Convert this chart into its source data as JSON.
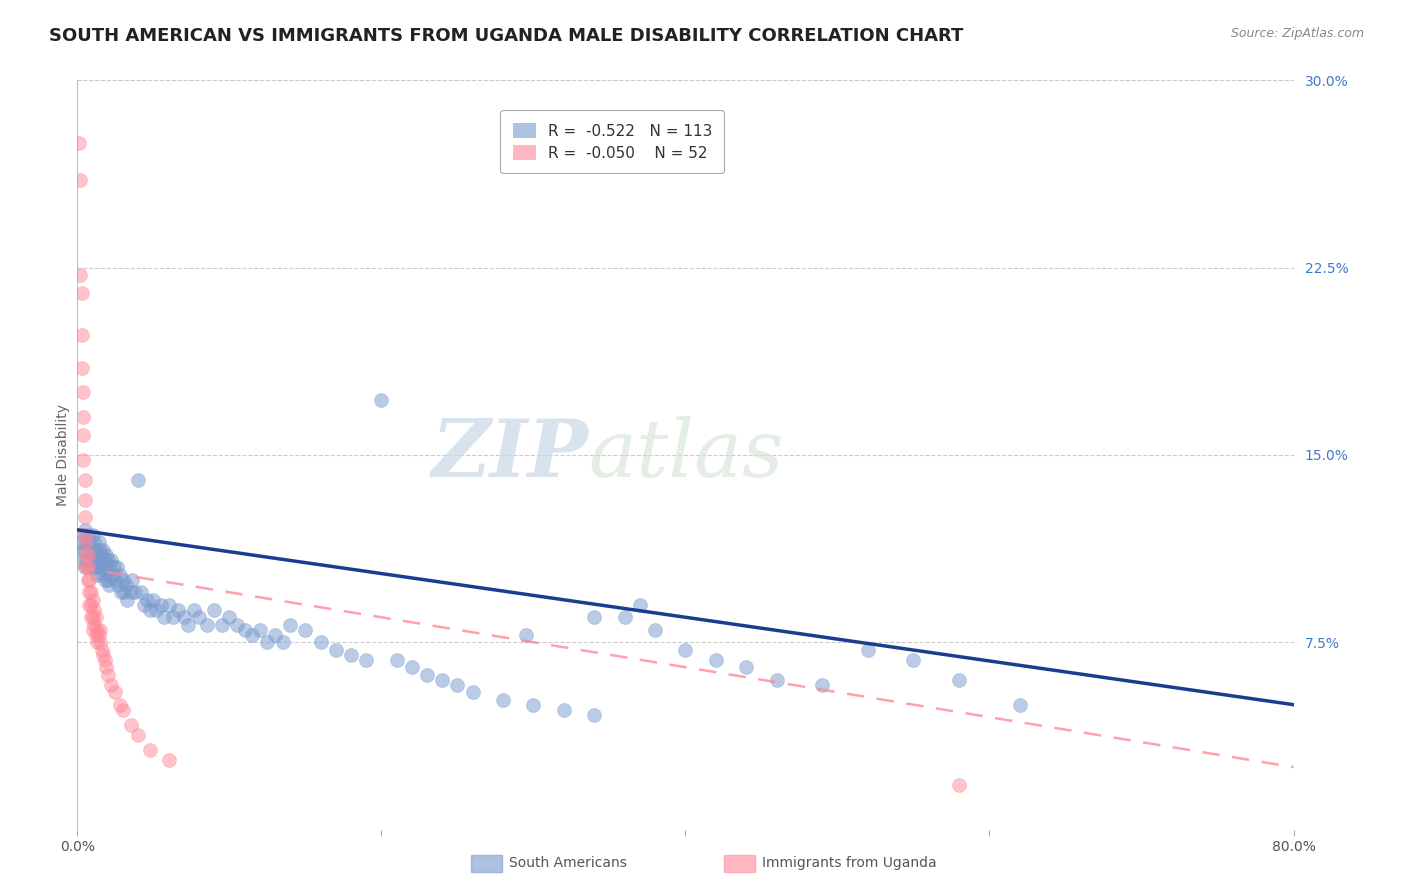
{
  "title": "SOUTH AMERICAN VS IMMIGRANTS FROM UGANDA MALE DISABILITY CORRELATION CHART",
  "source": "Source: ZipAtlas.com",
  "xlabel": "",
  "ylabel": "Male Disability",
  "xlim": [
    0.0,
    0.8
  ],
  "ylim": [
    0.0,
    0.3
  ],
  "xticks": [
    0.0,
    0.2,
    0.4,
    0.6,
    0.8
  ],
  "xticklabels": [
    "0.0%",
    "",
    "",
    "",
    "80.0%"
  ],
  "yticks_right": [
    0.075,
    0.15,
    0.225,
    0.3
  ],
  "ytick_labels_right": [
    "7.5%",
    "15.0%",
    "22.5%",
    "30.0%"
  ],
  "background_color": "#ffffff",
  "grid_color": "#cccccc",
  "blue_color": "#7799cc",
  "pink_color": "#ff8899",
  "blue_line_color": "#1a3e8f",
  "pink_line_color": "#ff99aa",
  "legend_R1": "-0.522",
  "legend_N1": "113",
  "legend_R2": "-0.050",
  "legend_N2": "52",
  "label1": "South Americans",
  "label2": "Immigrants from Uganda",
  "title_fontsize": 13,
  "axis_label_fontsize": 10,
  "tick_fontsize": 10,
  "legend_fontsize": 11,
  "right_tick_color": "#4477cc",
  "blue_scatter_x": [
    0.002,
    0.003,
    0.004,
    0.004,
    0.005,
    0.005,
    0.005,
    0.006,
    0.006,
    0.007,
    0.007,
    0.008,
    0.008,
    0.009,
    0.009,
    0.01,
    0.01,
    0.01,
    0.011,
    0.011,
    0.012,
    0.012,
    0.013,
    0.013,
    0.014,
    0.014,
    0.015,
    0.015,
    0.016,
    0.016,
    0.017,
    0.017,
    0.018,
    0.018,
    0.019,
    0.019,
    0.02,
    0.02,
    0.021,
    0.021,
    0.022,
    0.023,
    0.024,
    0.025,
    0.026,
    0.027,
    0.028,
    0.029,
    0.03,
    0.031,
    0.032,
    0.033,
    0.035,
    0.036,
    0.038,
    0.04,
    0.042,
    0.044,
    0.046,
    0.048,
    0.05,
    0.052,
    0.055,
    0.057,
    0.06,
    0.063,
    0.066,
    0.07,
    0.073,
    0.077,
    0.08,
    0.085,
    0.09,
    0.095,
    0.1,
    0.105,
    0.11,
    0.115,
    0.12,
    0.125,
    0.13,
    0.135,
    0.14,
    0.15,
    0.16,
    0.17,
    0.18,
    0.19,
    0.2,
    0.21,
    0.22,
    0.23,
    0.24,
    0.25,
    0.26,
    0.28,
    0.3,
    0.32,
    0.34,
    0.36,
    0.38,
    0.4,
    0.42,
    0.44,
    0.46,
    0.49,
    0.52,
    0.55,
    0.58,
    0.62,
    0.37,
    0.34,
    0.295
  ],
  "blue_scatter_y": [
    0.115,
    0.112,
    0.118,
    0.108,
    0.12,
    0.112,
    0.105,
    0.115,
    0.108,
    0.118,
    0.11,
    0.115,
    0.105,
    0.112,
    0.108,
    0.118,
    0.112,
    0.105,
    0.115,
    0.108,
    0.112,
    0.105,
    0.11,
    0.102,
    0.115,
    0.108,
    0.112,
    0.105,
    0.11,
    0.102,
    0.112,
    0.105,
    0.108,
    0.1,
    0.11,
    0.103,
    0.108,
    0.1,
    0.105,
    0.098,
    0.108,
    0.102,
    0.105,
    0.1,
    0.105,
    0.098,
    0.102,
    0.095,
    0.1,
    0.095,
    0.098,
    0.092,
    0.095,
    0.1,
    0.095,
    0.14,
    0.095,
    0.09,
    0.092,
    0.088,
    0.092,
    0.088,
    0.09,
    0.085,
    0.09,
    0.085,
    0.088,
    0.085,
    0.082,
    0.088,
    0.085,
    0.082,
    0.088,
    0.082,
    0.085,
    0.082,
    0.08,
    0.078,
    0.08,
    0.075,
    0.078,
    0.075,
    0.082,
    0.08,
    0.075,
    0.072,
    0.07,
    0.068,
    0.172,
    0.068,
    0.065,
    0.062,
    0.06,
    0.058,
    0.055,
    0.052,
    0.05,
    0.048,
    0.046,
    0.085,
    0.08,
    0.072,
    0.068,
    0.065,
    0.06,
    0.058,
    0.072,
    0.068,
    0.06,
    0.05,
    0.09,
    0.085,
    0.078
  ],
  "pink_scatter_x": [
    0.001,
    0.002,
    0.002,
    0.003,
    0.003,
    0.003,
    0.004,
    0.004,
    0.004,
    0.004,
    0.005,
    0.005,
    0.005,
    0.005,
    0.006,
    0.006,
    0.006,
    0.007,
    0.007,
    0.007,
    0.008,
    0.008,
    0.008,
    0.009,
    0.009,
    0.009,
    0.01,
    0.01,
    0.01,
    0.011,
    0.011,
    0.012,
    0.012,
    0.013,
    0.013,
    0.014,
    0.015,
    0.015,
    0.016,
    0.017,
    0.018,
    0.019,
    0.02,
    0.022,
    0.025,
    0.028,
    0.03,
    0.035,
    0.04,
    0.048,
    0.06,
    0.58
  ],
  "pink_scatter_y": [
    0.275,
    0.26,
    0.222,
    0.215,
    0.198,
    0.185,
    0.175,
    0.165,
    0.158,
    0.148,
    0.14,
    0.132,
    0.125,
    0.118,
    0.115,
    0.11,
    0.105,
    0.11,
    0.105,
    0.1,
    0.1,
    0.095,
    0.09,
    0.095,
    0.09,
    0.085,
    0.092,
    0.085,
    0.08,
    0.088,
    0.082,
    0.085,
    0.078,
    0.08,
    0.075,
    0.078,
    0.08,
    0.075,
    0.072,
    0.07,
    0.068,
    0.065,
    0.062,
    0.058,
    0.055,
    0.05,
    0.048,
    0.042,
    0.038,
    0.032,
    0.028,
    0.018
  ],
  "blue_trend_x0": 0.0,
  "blue_trend_x1": 0.8,
  "blue_trend_y0": 0.12,
  "blue_trend_y1": 0.05,
  "pink_trend_x0": 0.0,
  "pink_trend_x1": 0.8,
  "pink_trend_y0": 0.105,
  "pink_trend_y1": 0.025
}
